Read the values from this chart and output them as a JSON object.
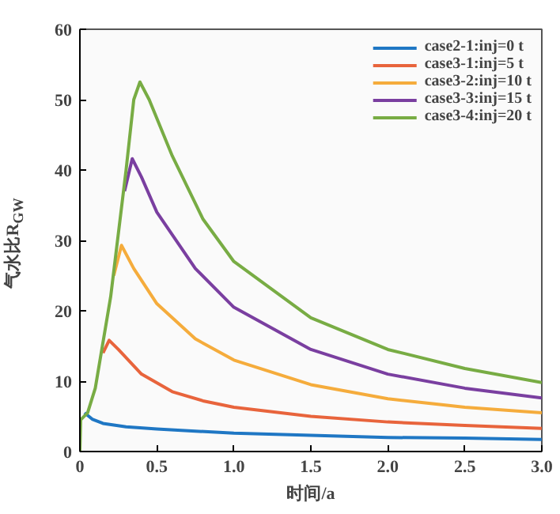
{
  "chart_data": {
    "type": "line",
    "xlabel": "时间/a",
    "ylabel": "气水比R$_{GW}$",
    "xlim": [
      0,
      3
    ],
    "ylim": [
      0,
      60
    ],
    "xticks": [
      0,
      {
        "value": 0.5,
        "label": "0.5"
      },
      {
        "value": 1,
        "label": "1.0"
      },
      {
        "value": 1.5,
        "label": "1.5"
      },
      {
        "value": 2,
        "label": "2.0"
      },
      {
        "value": 2.5,
        "label": "2.5"
      },
      {
        "value": 3,
        "label": "3.0"
      }
    ],
    "yticks": [
      0,
      10,
      20,
      30,
      40,
      50,
      60
    ],
    "grid": false,
    "legend": "top right",
    "marker": "none",
    "line_style": "solid",
    "series": [
      {
        "name": "case2-1:inj=0 t",
        "color": "#1f77c4",
        "x": [
          0.03,
          0.08,
          0.15,
          0.3,
          0.5,
          0.75,
          1.0,
          1.5,
          2.0,
          2.5,
          3.0
        ],
        "values": [
          5.5,
          4.6,
          4.0,
          3.5,
          3.2,
          2.9,
          2.6,
          2.3,
          2.0,
          1.9,
          1.7
        ]
      },
      {
        "name": "case3-1:inj=5 t",
        "color": "#e8643c",
        "x": [
          0.15,
          0.19,
          0.25,
          0.4,
          0.6,
          0.8,
          1.0,
          1.5,
          2.0,
          2.5,
          3.0
        ],
        "values": [
          14,
          15.8,
          14.5,
          11,
          8.5,
          7.2,
          6.3,
          5,
          4.2,
          3.7,
          3.3
        ]
      },
      {
        "name": "case3-2:inj=10 t",
        "color": "#f5ac3c",
        "x": [
          0.22,
          0.27,
          0.35,
          0.5,
          0.75,
          1.0,
          1.5,
          2.0,
          2.5,
          3.0
        ],
        "values": [
          25,
          29.3,
          26,
          21,
          16,
          13,
          9.5,
          7.5,
          6.3,
          5.5
        ]
      },
      {
        "name": "case3-3:inj=15 t",
        "color": "#7a3fa0",
        "x": [
          0.29,
          0.34,
          0.4,
          0.5,
          0.75,
          1.0,
          1.5,
          2.0,
          2.5,
          3.0
        ],
        "values": [
          37,
          41.6,
          39,
          34,
          26,
          20.5,
          14.5,
          11,
          9,
          7.6
        ]
      },
      {
        "name": "case3-4:inj=20 t",
        "color": "#78ac44",
        "x": [
          0,
          0.005,
          0.05,
          0.1,
          0.2,
          0.3,
          0.35,
          0.39,
          0.45,
          0.6,
          0.8,
          1.0,
          1.5,
          2.0,
          2.5,
          3.0
        ],
        "values": [
          0,
          4.5,
          5.5,
          9,
          22,
          40,
          50,
          52.5,
          50,
          42,
          33,
          27,
          19,
          14.5,
          11.8,
          9.8
        ]
      }
    ]
  }
}
